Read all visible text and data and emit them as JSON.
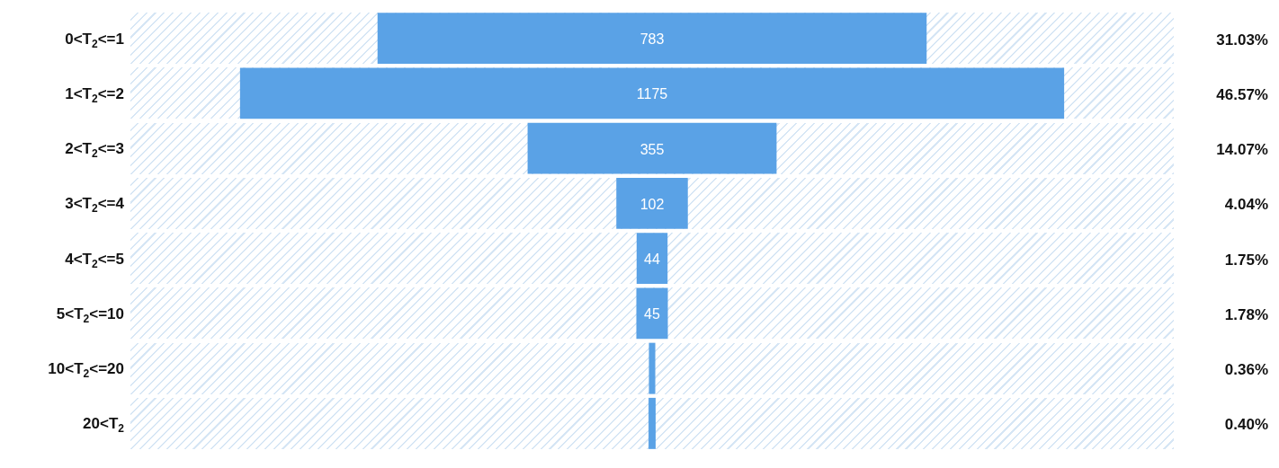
{
  "chart_data": {
    "type": "other",
    "categories": [
      "0<T$_{2}$<=1",
      "1<T$_{2}$<=2",
      "2<T$_{2}$<=3",
      "3<T$_{2}$<=4",
      "4<T$_{2}$<=5",
      "5<T$_{2}$<=10",
      "10<T$_{2}$<=20",
      "20<T$_{2}$"
    ],
    "values": [
      31.03,
      46.57,
      14.07,
      4.04,
      1.75,
      1.78,
      0.36,
      0.4
    ],
    "value_labels": [
      "31.03%",
      "46.57%",
      "14.07%",
      "4.04%",
      "1.75%",
      "1.78%",
      "0.36%",
      "0.40%"
    ],
    "color": "#5aa2e6",
    "annotations": [
      {
        "text": "783",
        "y": "0<T$_{2}$<=1"
      },
      {
        "text": "1175",
        "y": "1<T$_{2}$<=2"
      },
      {
        "text": "355",
        "y": "2<T$_{2}$<=3"
      },
      {
        "text": "102",
        "y": "3<T$_{2}$<=4"
      },
      {
        "text": "44",
        "y": "4<T$_{2}$<=5"
      },
      {
        "text": "45",
        "y": "5<T$_{2}$<=10"
      }
    ]
  }
}
